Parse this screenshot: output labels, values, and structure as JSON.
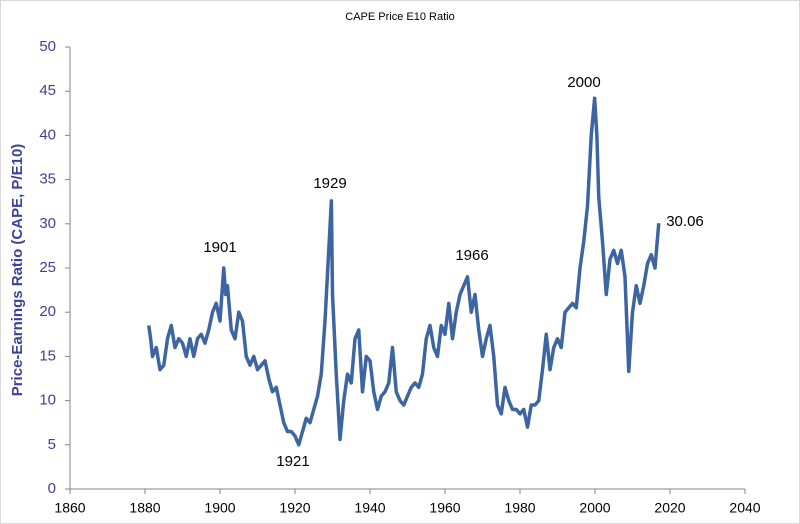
{
  "chart_data": {
    "type": "line",
    "title": "CAPE Price E10 Ratio",
    "y_label": "Price-Earnings Ratio (CAPE, P/E10)",
    "annotations": [
      "1901",
      "1929",
      "1966",
      "2000",
      "1921",
      "30.06"
    ],
    "xlim": [
      1860,
      2040
    ],
    "xticks": [
      1860,
      1880,
      1900,
      1920,
      1940,
      1960,
      1980,
      2000,
      2020,
      2040
    ],
    "ylim": [
      0,
      50
    ],
    "yticks": [
      0,
      5,
      10,
      15,
      20,
      25,
      30,
      35,
      40,
      45,
      50
    ],
    "series": [
      {
        "name": "CAPE",
        "color": "#3d65a1",
        "x": [
          1881,
          1881.5,
          1882,
          1883,
          1884,
          1885,
          1886,
          1887,
          1888,
          1889,
          1890,
          1891,
          1892,
          1893,
          1894,
          1895,
          1896,
          1897,
          1898,
          1899,
          1900,
          1901,
          1901.5,
          1902,
          1903,
          1904,
          1905,
          1906,
          1907,
          1908,
          1909,
          1910,
          1911,
          1912,
          1913,
          1914,
          1915,
          1916,
          1917,
          1918,
          1919,
          1920,
          1921,
          1922,
          1923,
          1924,
          1925,
          1926,
          1927,
          1928,
          1929,
          1929.7,
          1930,
          1931,
          1932,
          1933,
          1934,
          1935,
          1936,
          1937,
          1938,
          1939,
          1940,
          1941,
          1942,
          1943,
          1944,
          1945,
          1946,
          1947,
          1948,
          1949,
          1950,
          1951,
          1952,
          1953,
          1954,
          1955,
          1956,
          1957,
          1958,
          1959,
          1960,
          1961,
          1962,
          1963,
          1964,
          1965,
          1966,
          1967,
          1968,
          1969,
          1970,
          1971,
          1972,
          1973,
          1974,
          1975,
          1976,
          1977,
          1978,
          1979,
          1980,
          1981,
          1982,
          1983,
          1984,
          1985,
          1986,
          1987,
          1988,
          1989,
          1990,
          1991,
          1992,
          1993,
          1994,
          1995,
          1996,
          1997,
          1998,
          1999,
          1999.9,
          2000.5,
          2001,
          2002,
          2003,
          2004,
          2005,
          2006,
          2007,
          2008,
          2009,
          2010,
          2011,
          2012,
          2013,
          2014,
          2015,
          2016,
          2017
        ],
        "values": [
          18.5,
          17,
          15,
          16,
          13.5,
          14,
          17,
          18.5,
          16,
          17,
          16.5,
          15,
          17,
          15,
          17,
          17.5,
          16.5,
          18,
          20,
          21,
          19,
          25,
          22,
          23,
          18,
          17,
          20,
          19,
          15,
          14,
          15,
          13.5,
          14,
          14.5,
          12.5,
          11,
          11.5,
          9.5,
          7.5,
          6.5,
          6.5,
          6,
          5,
          6.5,
          8,
          7.5,
          9,
          10.5,
          13,
          19,
          27,
          32.6,
          22,
          13,
          5.6,
          10,
          13,
          12,
          17,
          18,
          11,
          15,
          14.5,
          11,
          9,
          10.5,
          11,
          12,
          16,
          11,
          10,
          9.5,
          10.5,
          11.5,
          12,
          11.5,
          13,
          17,
          18.5,
          16,
          15,
          18.5,
          17.5,
          21,
          17,
          20,
          22,
          23,
          24,
          20,
          22,
          18,
          15,
          17,
          18.5,
          15,
          9.5,
          8.5,
          11.5,
          10,
          9,
          9,
          8.5,
          9,
          7,
          9.5,
          9.5,
          10,
          13.5,
          17.5,
          13.5,
          16,
          17,
          16,
          20,
          20.5,
          21,
          20.5,
          25,
          28,
          32,
          40,
          44.2,
          40,
          33,
          28,
          22,
          26,
          27,
          25.5,
          27,
          24,
          13.3,
          20,
          23,
          21,
          23,
          25.5,
          26.5,
          25,
          30.06
        ]
      }
    ]
  }
}
